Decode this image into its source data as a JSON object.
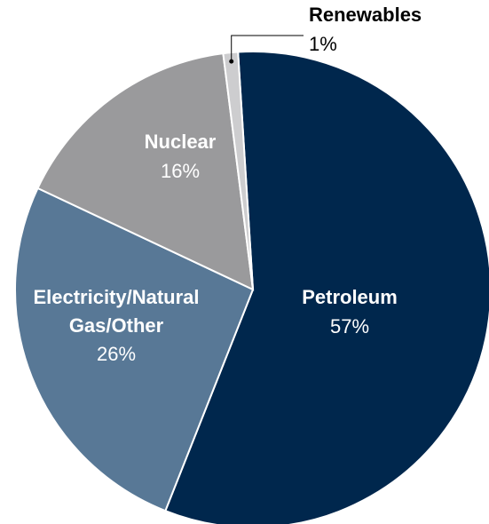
{
  "chart_data": {
    "type": "pie",
    "slices": [
      {
        "name_lines": [
          "Petroleum"
        ],
        "value": 57,
        "label": "57%",
        "color": "#00274d",
        "text_color": "#ffffff"
      },
      {
        "name_lines": [
          "Electricity/Natural",
          "Gas/Other"
        ],
        "value": 26,
        "label": "26%",
        "color": "#587896",
        "text_color": "#ffffff"
      },
      {
        "name_lines": [
          "Nuclear"
        ],
        "value": 16,
        "label": "16%",
        "color": "#9a9a9c",
        "text_color": "#ffffff"
      },
      {
        "name_lines": [
          "Renewables"
        ],
        "value": 1,
        "label": "1%",
        "color": "#cdcdcf",
        "text_color": "#000000"
      }
    ],
    "start_angle_deg": -3.6,
    "direction": "clockwise",
    "slice_border_color": "#ffffff"
  }
}
